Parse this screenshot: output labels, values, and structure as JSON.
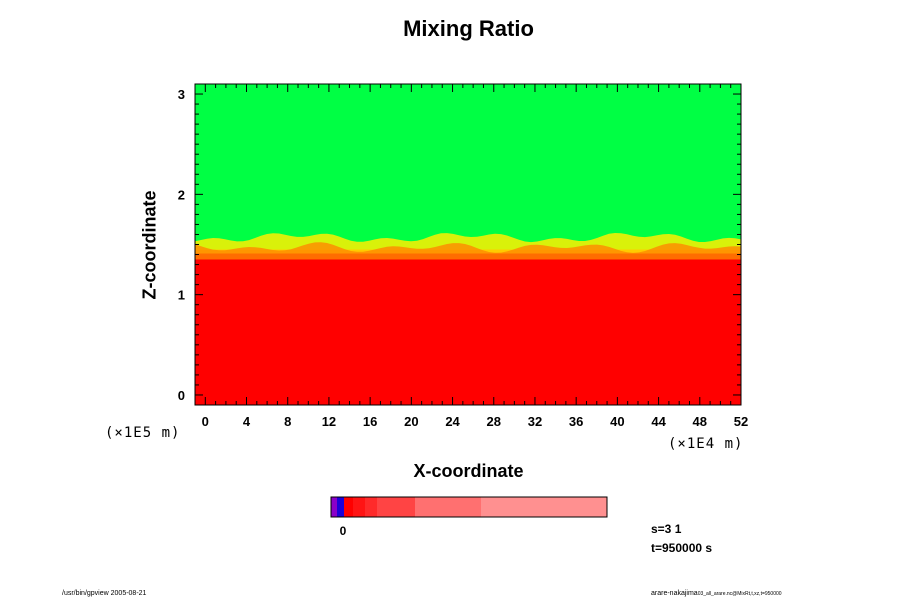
{
  "chart_data": {
    "type": "heatmap",
    "title": "Mixing Ratio",
    "xlabel": "X-coordinate",
    "ylabel": "Z-coordinate",
    "x_unit_label": "(×1E4 m)",
    "y_unit_label": "(×1E5 m)",
    "xlim": [
      -1,
      52
    ],
    "ylim": [
      -0.1,
      3.1
    ],
    "x_ticks": [
      0,
      4,
      8,
      12,
      16,
      20,
      24,
      28,
      32,
      36,
      40,
      44,
      48,
      52
    ],
    "y_ticks": [
      0,
      1,
      2,
      3
    ],
    "interface_height": 1.45,
    "upper_region_color": "#00ff44",
    "lower_region_color": "#ff0000",
    "colorbar": {
      "tick_label": "0",
      "colors": [
        "#8a00c8",
        "#1c00d8",
        "#ff0000",
        "#ff1414",
        "#ff2a2a",
        "#ff4444",
        "#ff7070",
        "#ff9090"
      ]
    }
  },
  "annotations": {
    "step": "s=3 1",
    "time": "t=950000 s"
  },
  "footer": {
    "left": "/usr/bin/gpview 2005-08-21",
    "right": "arare-nakajima",
    "right_small": "03_all_arare.nc@MixRt,t,xz,t=950000"
  }
}
